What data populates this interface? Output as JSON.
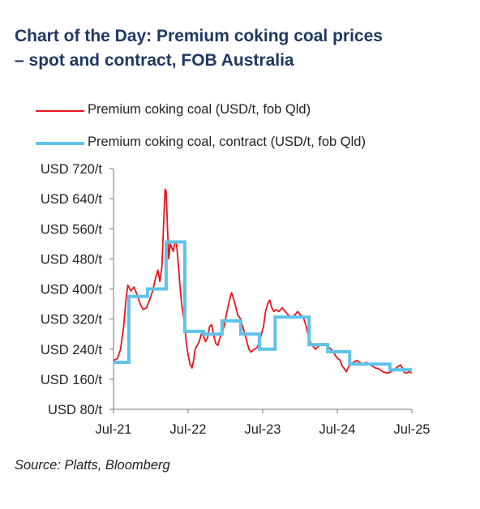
{
  "title_lines": [
    "Chart of the Day: Premium coking coal prices",
    "– spot and contract, FOB Australia"
  ],
  "source": "Source: Platts, Bloomberg",
  "colors": {
    "title": "#1f3864",
    "spot": "#e8141c",
    "contract": "#5ec3e8",
    "axis": "#555555"
  },
  "chart_data": {
    "type": "line",
    "title": "Chart of the Day: Premium coking coal prices – spot and contract, FOB Australia",
    "xlabel": "",
    "ylabel": "",
    "grid": false,
    "legend_position": "top-left",
    "x_ticks": [
      "Jul-21",
      "Jul-22",
      "Jul-23",
      "Jul-24",
      "Jul-25"
    ],
    "y_ticks": [
      "USD 80/t",
      "USD 160/t",
      "USD 240/t",
      "USD 320/t",
      "USD 400/t",
      "USD 480/t",
      "USD 560/t",
      "USD 640/t",
      "USD 720/t"
    ],
    "xlim": [
      "2021-07",
      "2025-07"
    ],
    "ylim": [
      80,
      720
    ],
    "series": [
      {
        "name": "Premium coking coal (USD/t, fob Qld)",
        "color": "#e8141c",
        "points": [
          [
            "2021-07",
            210
          ],
          [
            "2021-07-20",
            215
          ],
          [
            "2021-08-05",
            240
          ],
          [
            "2021-08-20",
            300
          ],
          [
            "2021-09-01",
            370
          ],
          [
            "2021-09-10",
            410
          ],
          [
            "2021-09-25",
            395
          ],
          [
            "2021-10-10",
            405
          ],
          [
            "2021-10-25",
            385
          ],
          [
            "2021-11-10",
            360
          ],
          [
            "2021-11-25",
            345
          ],
          [
            "2021-12-10",
            350
          ],
          [
            "2021-12-25",
            370
          ],
          [
            "2022-01-10",
            395
          ],
          [
            "2022-01-25",
            430
          ],
          [
            "2022-02-05",
            450
          ],
          [
            "2022-02-15",
            420
          ],
          [
            "2022-02-25",
            460
          ],
          [
            "2022-03-05",
            600
          ],
          [
            "2022-03-10",
            665
          ],
          [
            "2022-03-15",
            660
          ],
          [
            "2022-03-22",
            560
          ],
          [
            "2022-03-28",
            480
          ],
          [
            "2022-04-05",
            520
          ],
          [
            "2022-04-12",
            510
          ],
          [
            "2022-04-20",
            500
          ],
          [
            "2022-04-28",
            525
          ],
          [
            "2022-05-05",
            520
          ],
          [
            "2022-05-12",
            480
          ],
          [
            "2022-05-20",
            420
          ],
          [
            "2022-05-30",
            360
          ],
          [
            "2022-06-08",
            330
          ],
          [
            "2022-06-15",
            300
          ],
          [
            "2022-06-22",
            260
          ],
          [
            "2022-06-30",
            230
          ],
          [
            "2022-07-10",
            200
          ],
          [
            "2022-07-20",
            190
          ],
          [
            "2022-07-28",
            210
          ],
          [
            "2022-08-05",
            240
          ],
          [
            "2022-08-15",
            250
          ],
          [
            "2022-08-25",
            260
          ],
          [
            "2022-09-05",
            280
          ],
          [
            "2022-09-15",
            275
          ],
          [
            "2022-09-25",
            260
          ],
          [
            "2022-10-05",
            270
          ],
          [
            "2022-10-15",
            300
          ],
          [
            "2022-10-25",
            305
          ],
          [
            "2022-11-05",
            275
          ],
          [
            "2022-11-15",
            255
          ],
          [
            "2022-11-25",
            250
          ],
          [
            "2022-12-05",
            270
          ],
          [
            "2022-12-15",
            285
          ],
          [
            "2022-12-25",
            300
          ],
          [
            "2023-01-05",
            330
          ],
          [
            "2023-01-15",
            355
          ],
          [
            "2023-01-25",
            380
          ],
          [
            "2023-02-01",
            390
          ],
          [
            "2023-02-10",
            375
          ],
          [
            "2023-02-20",
            355
          ],
          [
            "2023-03-01",
            330
          ],
          [
            "2023-03-15",
            320
          ],
          [
            "2023-03-25",
            300
          ],
          [
            "2023-04-05",
            280
          ],
          [
            "2023-04-15",
            260
          ],
          [
            "2023-04-25",
            240
          ],
          [
            "2023-05-05",
            232
          ],
          [
            "2023-05-15",
            238
          ],
          [
            "2023-05-25",
            240
          ],
          [
            "2023-06-05",
            245
          ],
          [
            "2023-06-15",
            260
          ],
          [
            "2023-06-25",
            280
          ],
          [
            "2023-07-05",
            300
          ],
          [
            "2023-07-15",
            340
          ],
          [
            "2023-07-25",
            360
          ],
          [
            "2023-08-05",
            370
          ],
          [
            "2023-08-15",
            350
          ],
          [
            "2023-08-25",
            340
          ],
          [
            "2023-09-05",
            345
          ],
          [
            "2023-09-20",
            340
          ],
          [
            "2023-10-05",
            350
          ],
          [
            "2023-10-20",
            340
          ],
          [
            "2023-11-05",
            330
          ],
          [
            "2023-11-20",
            325
          ],
          [
            "2023-12-05",
            330
          ],
          [
            "2023-12-20",
            340
          ],
          [
            "2024-01-05",
            330
          ],
          [
            "2024-01-20",
            320
          ],
          [
            "2024-02-01",
            300
          ],
          [
            "2024-02-10",
            280
          ],
          [
            "2024-02-20",
            260
          ],
          [
            "2024-03-01",
            250
          ],
          [
            "2024-03-15",
            240
          ],
          [
            "2024-03-25",
            245
          ],
          [
            "2024-04-05",
            250
          ],
          [
            "2024-04-15",
            255
          ],
          [
            "2024-04-25",
            250
          ],
          [
            "2024-05-05",
            255
          ],
          [
            "2024-05-20",
            245
          ],
          [
            "2024-06-01",
            240
          ],
          [
            "2024-06-15",
            230
          ],
          [
            "2024-06-25",
            220
          ],
          [
            "2024-07-05",
            215
          ],
          [
            "2024-07-15",
            210
          ],
          [
            "2024-07-25",
            195
          ],
          [
            "2024-08-05",
            188
          ],
          [
            "2024-08-15",
            180
          ],
          [
            "2024-08-25",
            192
          ],
          [
            "2024-09-05",
            200
          ],
          [
            "2024-09-20",
            205
          ],
          [
            "2024-10-05",
            210
          ],
          [
            "2024-10-20",
            205
          ],
          [
            "2024-11-05",
            200
          ],
          [
            "2024-11-20",
            205
          ],
          [
            "2024-12-05",
            200
          ],
          [
            "2024-12-20",
            195
          ],
          [
            "2025-01-05",
            190
          ],
          [
            "2025-01-20",
            188
          ],
          [
            "2025-02-05",
            182
          ],
          [
            "2025-02-20",
            178
          ],
          [
            "2025-03-05",
            176
          ],
          [
            "2025-03-20",
            180
          ],
          [
            "2025-04-05",
            185
          ],
          [
            "2025-04-20",
            192
          ],
          [
            "2025-05-05",
            198
          ],
          [
            "2025-05-15",
            190
          ],
          [
            "2025-05-25",
            178
          ],
          [
            "2025-06-05",
            176
          ],
          [
            "2025-06-20",
            180
          ],
          [
            "2025-07",
            176
          ]
        ]
      },
      {
        "name": "Premium coking coal, contract (USD/t, fob Qld)",
        "color": "#5ec3e8",
        "step": true,
        "points": [
          [
            "2021-07",
            205
          ],
          [
            "2021-09-15",
            205
          ],
          [
            "2021-09-15",
            380
          ],
          [
            "2021-12-15",
            380
          ],
          [
            "2021-12-15",
            400
          ],
          [
            "2022-03-15",
            400
          ],
          [
            "2022-03-15",
            525
          ],
          [
            "2022-06-15",
            525
          ],
          [
            "2022-06-15",
            287
          ],
          [
            "2022-09-15",
            287
          ],
          [
            "2022-09-15",
            280
          ],
          [
            "2022-12-15",
            280
          ],
          [
            "2022-12-15",
            315
          ],
          [
            "2023-03-15",
            315
          ],
          [
            "2023-03-15",
            280
          ],
          [
            "2023-06-15",
            280
          ],
          [
            "2023-06-15",
            240
          ],
          [
            "2023-09-01",
            240
          ],
          [
            "2023-09-01",
            325
          ],
          [
            "2024-02-15",
            325
          ],
          [
            "2024-02-15",
            252
          ],
          [
            "2024-05-15",
            252
          ],
          [
            "2024-05-15",
            233
          ],
          [
            "2024-09-01",
            233
          ],
          [
            "2024-09-01",
            200
          ],
          [
            "2025-03-15",
            200
          ],
          [
            "2025-03-15",
            185
          ],
          [
            "2025-07",
            185
          ]
        ]
      }
    ]
  }
}
